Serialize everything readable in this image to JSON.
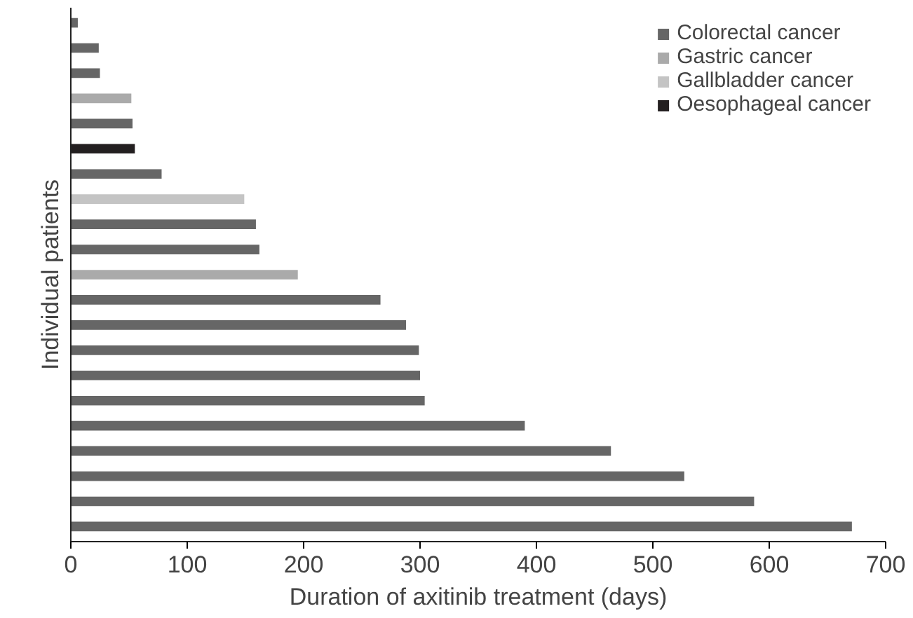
{
  "chart_data": {
    "type": "bar",
    "orientation": "horizontal",
    "xlabel": "Duration of axitinib treatment (days)",
    "ylabel": "Individual patients",
    "categories": [
      null,
      null,
      null,
      null,
      null,
      null,
      null,
      null,
      null,
      null,
      null,
      null,
      null,
      null,
      null,
      null,
      null,
      null,
      null,
      null,
      null
    ],
    "series": [
      {
        "name": "Colorectal cancer",
        "color": "#666666",
        "values": [
          6,
          24,
          25,
          null,
          53,
          null,
          78,
          null,
          159,
          162,
          null,
          266,
          288,
          299,
          300,
          304,
          390,
          464,
          527,
          587,
          671
        ]
      },
      {
        "name": "Gastric cancer",
        "color": "#aaaaaa",
        "values": [
          null,
          null,
          null,
          52,
          null,
          null,
          null,
          null,
          null,
          null,
          195,
          null,
          null,
          null,
          null,
          null,
          null,
          null,
          null,
          null,
          null
        ]
      },
      {
        "name": "Gallbladder cancer",
        "color": "#c4c4c4",
        "values": [
          null,
          null,
          null,
          null,
          null,
          null,
          null,
          149,
          null,
          null,
          null,
          null,
          null,
          null,
          null,
          null,
          null,
          null,
          null,
          null,
          null
        ]
      },
      {
        "name": "Oesophageal cancer",
        "color": "#231f20",
        "values": [
          null,
          null,
          null,
          null,
          null,
          55,
          null,
          null,
          null,
          null,
          null,
          null,
          null,
          null,
          null,
          null,
          null,
          null,
          null,
          null,
          null
        ]
      }
    ],
    "xlim": [
      0,
      700
    ],
    "xticks": [
      0,
      100,
      200,
      300,
      400,
      500,
      600,
      700
    ],
    "grid": false,
    "legend": "top right"
  }
}
